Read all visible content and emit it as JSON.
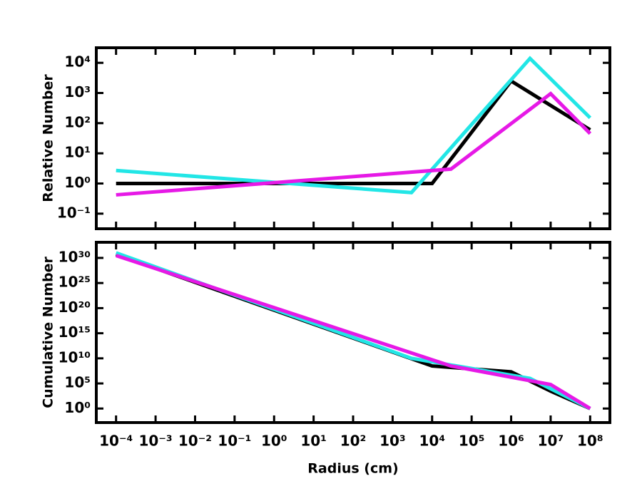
{
  "chart_data": [
    {
      "type": "line",
      "ylabel": "Relative Number",
      "xscale": "log",
      "yscale": "log",
      "xlim": [
        3.16e-05,
        316000000
      ],
      "ylim": [
        0.0316,
        31623
      ],
      "xticks": [
        0.0001,
        0.001,
        0.01,
        0.1,
        1,
        10,
        100,
        1000,
        10000,
        100000,
        1000000,
        10000000,
        100000000
      ],
      "yticks": [
        {
          "value": 0.1,
          "label": "10⁻¹"
        },
        {
          "value": 1,
          "label": "10⁰"
        },
        {
          "value": 10,
          "label": "10¹"
        },
        {
          "value": 100,
          "label": "10²"
        },
        {
          "value": 1000,
          "label": "10³"
        },
        {
          "value": 10000,
          "label": "10⁴"
        }
      ],
      "series": [
        {
          "color": "#000000",
          "x": [
            0.0001,
            10000,
            1000000,
            100000000
          ],
          "values": [
            1,
            1,
            2500,
            60
          ]
        },
        {
          "color": "#22e6e6",
          "x": [
            0.0001,
            3000,
            3000000,
            100000000
          ],
          "values": [
            2.7,
            0.5,
            14000,
            150
          ]
        },
        {
          "color": "#e619e6",
          "x": [
            0.0001,
            30000,
            10000000,
            100000000
          ],
          "values": [
            0.42,
            3,
            950,
            45
          ]
        }
      ]
    },
    {
      "type": "line",
      "xlabel": "Radius (cm)",
      "ylabel": "Cumulative Number",
      "xscale": "log",
      "yscale": "log",
      "xlim": [
        3.16e-05,
        316000000
      ],
      "ylim": [
        0.0016,
        1.3e+33
      ],
      "xticks": [
        {
          "value": 0.0001,
          "label": "10⁻⁴"
        },
        {
          "value": 0.001,
          "label": "10⁻³"
        },
        {
          "value": 0.01,
          "label": "10⁻²"
        },
        {
          "value": 0.1,
          "label": "10⁻¹"
        },
        {
          "value": 1,
          "label": "10⁰"
        },
        {
          "value": 10,
          "label": "10¹"
        },
        {
          "value": 100,
          "label": "10²"
        },
        {
          "value": 1000,
          "label": "10³"
        },
        {
          "value": 10000,
          "label": "10⁴"
        },
        {
          "value": 100000,
          "label": "10⁵"
        },
        {
          "value": 1000000,
          "label": "10⁶"
        },
        {
          "value": 10000000,
          "label": "10⁷"
        },
        {
          "value": 100000000,
          "label": "10⁸"
        }
      ],
      "yticks": [
        {
          "value": 1,
          "label": "10⁰"
        },
        {
          "value": 100000,
          "label": "10⁵"
        },
        {
          "value": 10000000000.0,
          "label": "10¹⁰"
        },
        {
          "value": 1000000000000000.0,
          "label": "10¹⁵"
        },
        {
          "value": 1e+20,
          "label": "10²⁰"
        },
        {
          "value": 1e+25,
          "label": "10²⁵"
        },
        {
          "value": 1e+30,
          "label": "10³⁰"
        }
      ],
      "series": [
        {
          "color": "#000000",
          "x": [
            0.0001,
            10000,
            1000000,
            10000000,
            100000000
          ],
          "values": [
            5e+30,
            300000000,
            20000000,
            3000,
            1
          ]
        },
        {
          "color": "#22e6e6",
          "x": [
            0.0001,
            3000,
            3000000,
            100000000
          ],
          "values": [
            1e+31,
            10000000000.0,
            1000000,
            1
          ]
        },
        {
          "color": "#e619e6",
          "x": [
            0.0001,
            30000,
            10000000,
            100000000
          ],
          "values": [
            3e+30,
            300000000,
            60000,
            1
          ]
        }
      ]
    }
  ]
}
